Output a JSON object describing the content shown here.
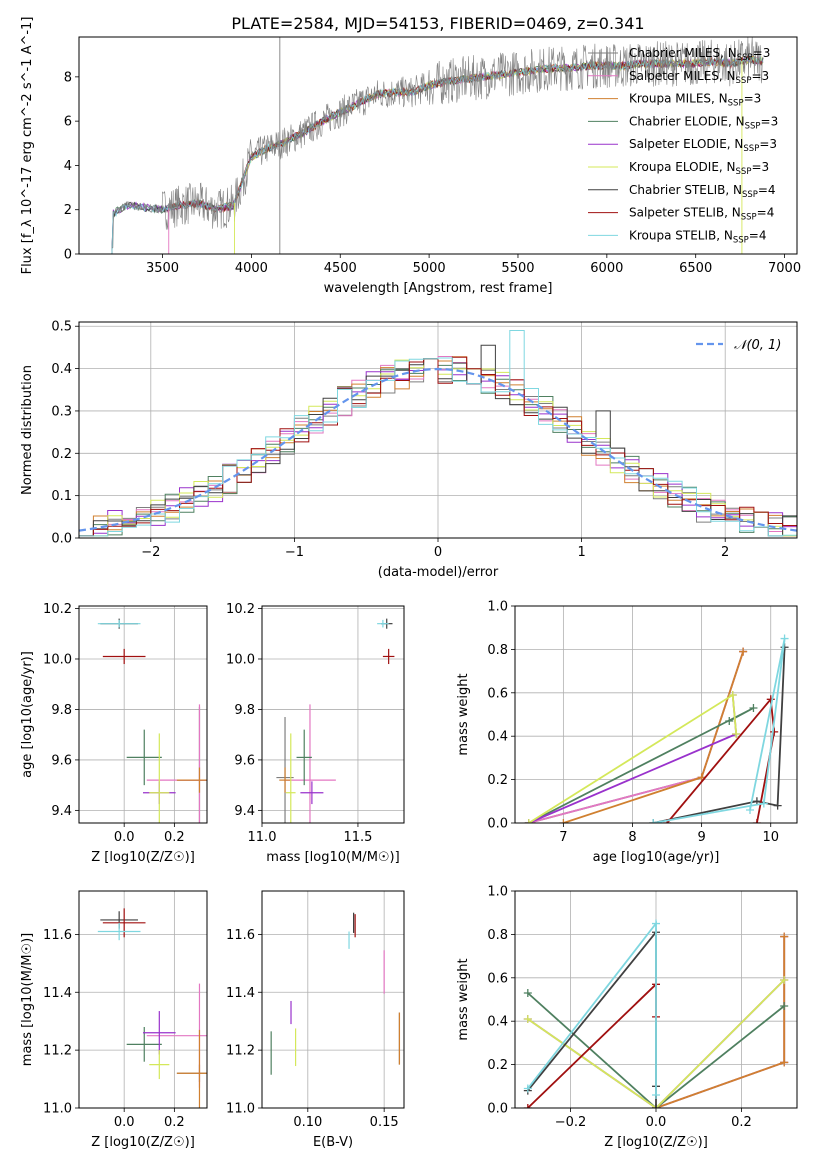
{
  "figure": {
    "title": "PLATE=2584, MJD=54153, FIBERID=0469, z=0.341"
  },
  "series_styles": [
    {
      "name": "Chabrier MILES, N_SSP=3",
      "color": "#7f7f7f"
    },
    {
      "name": "Salpeter MILES, N_SSP=3",
      "color": "#e377c2"
    },
    {
      "name": "Kroupa MILES, N_SSP=3",
      "color": "#d08030"
    },
    {
      "name": "Chabrier ELODIE, N_SSP=3",
      "color": "#4f8060"
    },
    {
      "name": "Salpeter ELODIE, N_SSP=3",
      "color": "#9932cc"
    },
    {
      "name": "Kroupa ELODIE, N_SSP=3",
      "color": "#d4e85a"
    },
    {
      "name": "Chabrier STELIB, N_SSP=4",
      "color": "#404040"
    },
    {
      "name": "Salpeter STELIB, N_SSP=4",
      "color": "#a01010"
    },
    {
      "name": "Kroupa STELIB, N_SSP=4",
      "color": "#7fd7e0"
    }
  ],
  "chart_data": [
    {
      "id": "spectrum",
      "type": "line",
      "xlabel": "wavelength [Angstrom, rest frame]",
      "ylabel": "Flux [f_λ 10^-17 erg cm^-2 s^-1 A^-1]",
      "xlim": [
        3030,
        7070
      ],
      "ylim": [
        0,
        9.8
      ],
      "xticks": [
        "3500",
        "4000",
        "4500",
        "5000",
        "5500",
        "6000",
        "6500",
        "7000"
      ],
      "yticks": [
        "0",
        "2",
        "4",
        "6",
        "8"
      ],
      "legend_position": "right",
      "legend": [
        "Chabrier MILES, N",
        "Salpeter MILES, N",
        "Kroupa MILES, N",
        "Chabrier ELODIE, N",
        "Salpeter ELODIE, N",
        "Kroupa ELODIE, N",
        "Chabrier STELIB, N",
        "Salpeter STELIB, N",
        "Kroupa STELIB, N"
      ],
      "legend_values": [
        "=3",
        "=3",
        "=3",
        "=3",
        "=3",
        "=3",
        "=4",
        "=4",
        "=4"
      ],
      "legend_sub": "SSP",
      "continuum_x": [
        3215,
        3300,
        3400,
        3500,
        3600,
        3700,
        3800,
        3900,
        4000,
        4100,
        4200,
        4300,
        4400,
        4500,
        4600,
        4700,
        4800,
        4900,
        5000,
        5100,
        5200,
        5300,
        5400,
        5500,
        5600,
        5700,
        5800,
        5900,
        6000,
        6100,
        6200,
        6300,
        6400,
        6500,
        6600,
        6700,
        6800,
        6880
      ],
      "continuum_y": [
        1.8,
        2.2,
        2.1,
        2.0,
        2.2,
        2.3,
        2.0,
        2.2,
        4.4,
        4.8,
        5.1,
        5.5,
        6.0,
        6.4,
        6.8,
        7.2,
        7.3,
        7.3,
        7.6,
        7.8,
        7.9,
        8.0,
        8.1,
        8.2,
        8.3,
        8.4,
        8.4,
        8.5,
        8.5,
        8.5,
        8.6,
        8.6,
        8.6,
        8.6,
        8.7,
        8.6,
        8.8,
        8.7
      ]
    },
    {
      "id": "residual_histogram",
      "type": "line",
      "xlabel": "(data-model)/error",
      "ylabel": "Normed distribution",
      "xlim": [
        -2.5,
        2.5
      ],
      "ylim": [
        0,
        0.51
      ],
      "xticks": [
        "-2",
        "-1",
        "0",
        "1",
        "2"
      ],
      "yticks": [
        "0.0",
        "0.1",
        "0.2",
        "0.3",
        "0.4",
        "0.5"
      ],
      "legend": [
        "N(0,1)"
      ],
      "legend_position": "upper right",
      "grid": true,
      "bin_width": 0.1
    },
    {
      "id": "age_vs_Z",
      "type": "scatter",
      "xlabel": "Z [log10(Z/Z☉)]",
      "ylabel": "age  [log10(age/yr)]",
      "xlim": [
        -0.18,
        0.33
      ],
      "ylim": [
        9.35,
        10.21
      ],
      "xticks": [
        "0.0",
        "0.2"
      ],
      "yticks": [
        "9.4",
        "9.6",
        "9.8",
        "10.0",
        "10.2"
      ],
      "grid": true,
      "points": [
        {
          "series": 0,
          "x": 0.3,
          "y": 9.52,
          "xerr": 0.18,
          "yerr": 0.58
        },
        {
          "series": 1,
          "x": 0.3,
          "y": 9.52,
          "xerr": 0.42,
          "yerr": 0.6
        },
        {
          "series": 2,
          "x": 0.3,
          "y": 9.52,
          "xerr": 0.18,
          "yerr": 0.1
        },
        {
          "series": 3,
          "x": 0.08,
          "y": 9.61,
          "xerr": 0.14,
          "yerr": 0.22
        },
        {
          "series": 4,
          "x": 0.14,
          "y": 9.47,
          "xerr": 0.13,
          "yerr": 0.09
        },
        {
          "series": 5,
          "x": 0.14,
          "y": 9.47,
          "xerr": 0.08,
          "yerr": 0.47
        },
        {
          "series": 6,
          "x": -0.02,
          "y": 10.14,
          "xerr": 0.15,
          "yerr": 0.04
        },
        {
          "series": 7,
          "x": 0.0,
          "y": 10.01,
          "xerr": 0.17,
          "yerr": 0.06
        },
        {
          "series": 8,
          "x": -0.02,
          "y": 10.14,
          "xerr": 0.17,
          "yerr": 0.03
        }
      ]
    },
    {
      "id": "age_vs_mass",
      "type": "scatter",
      "xlabel": "mass [log10(M/M☉)]",
      "ylabel": "",
      "xlim": [
        11.0,
        11.74
      ],
      "ylim": [
        9.35,
        10.21
      ],
      "xticks": [
        "11.0",
        "11.5"
      ],
      "yticks": [
        "9.4",
        "9.6",
        "9.8",
        "10.0",
        "10.2"
      ],
      "grid": true,
      "points": [
        {
          "series": 0,
          "x": 11.12,
          "y": 9.53,
          "xerr": 0.09,
          "yerr": 0.48
        },
        {
          "series": 1,
          "x": 11.25,
          "y": 9.52,
          "xerr": 0.27,
          "yerr": 0.6
        },
        {
          "series": 2,
          "x": 11.12,
          "y": 9.52,
          "xerr": 0.06,
          "yerr": 0.1
        },
        {
          "series": 3,
          "x": 11.22,
          "y": 9.61,
          "xerr": 0.08,
          "yerr": 0.22
        },
        {
          "series": 4,
          "x": 11.26,
          "y": 9.47,
          "xerr": 0.12,
          "yerr": 0.09
        },
        {
          "series": 5,
          "x": 11.15,
          "y": 9.47,
          "xerr": 0.05,
          "yerr": 0.47
        },
        {
          "series": 6,
          "x": 11.65,
          "y": 10.14,
          "xerr": 0.06,
          "yerr": 0.04
        },
        {
          "series": 7,
          "x": 11.66,
          "y": 10.01,
          "xerr": 0.06,
          "yerr": 0.06
        },
        {
          "series": 8,
          "x": 11.63,
          "y": 10.14,
          "xerr": 0.06,
          "yerr": 0.03
        }
      ]
    },
    {
      "id": "weight_vs_age",
      "type": "line",
      "xlabel": "age  [log10(age/yr)]",
      "ylabel": "mass weight",
      "xlim": [
        6.3,
        10.38
      ],
      "ylim": [
        0,
        1.0
      ],
      "xticks": [
        "7",
        "8",
        "9",
        "10"
      ],
      "yticks": [
        "0.0",
        "0.2",
        "0.4",
        "0.6",
        "0.8",
        "1.0"
      ],
      "grid": true,
      "series": [
        {
          "series": 0,
          "x": [
            6.5,
            9.0,
            9.6
          ],
          "y": [
            0.0,
            0.21,
            0.79
          ]
        },
        {
          "series": 1,
          "x": [
            6.5,
            9.0,
            9.6
          ],
          "y": [
            0.0,
            0.21,
            0.79
          ]
        },
        {
          "series": 2,
          "x": [
            7.0,
            9.0,
            9.6
          ],
          "y": [
            0.0,
            0.21,
            0.79
          ]
        },
        {
          "series": 3,
          "x": [
            6.5,
            9.75,
            9.4
          ],
          "y": [
            0.0,
            0.53,
            0.47
          ]
        },
        {
          "series": 4,
          "x": [
            6.5,
            9.5,
            9.45
          ],
          "y": [
            0.0,
            0.41,
            0.59
          ]
        },
        {
          "series": 5,
          "x": [
            6.5,
            9.45,
            9.5
          ],
          "y": [
            0.0,
            0.59,
            0.41
          ]
        },
        {
          "series": 6,
          "x": [
            8.3,
            9.8,
            10.1,
            10.2
          ],
          "y": [
            0.0,
            0.1,
            0.08,
            0.81
          ]
        },
        {
          "series": 7,
          "x": [
            8.5,
            10.0,
            10.05,
            9.8
          ],
          "y": [
            0.0,
            0.57,
            0.42,
            0.0
          ]
        },
        {
          "series": 8,
          "x": [
            8.3,
            9.9,
            10.2,
            9.7
          ],
          "y": [
            0.0,
            0.09,
            0.85,
            0.06
          ]
        }
      ]
    },
    {
      "id": "mass_vs_Z",
      "type": "scatter",
      "xlabel": "Z [log10(Z/Z☉)]",
      "ylabel": "mass [log10(M/M☉)]",
      "xlim": [
        -0.18,
        0.33
      ],
      "ylim": [
        11.0,
        11.75
      ],
      "xticks": [
        "0.0",
        "0.2"
      ],
      "yticks": [
        "11.0",
        "11.2",
        "11.4",
        "11.6"
      ],
      "grid": true,
      "points": [
        {
          "series": 0,
          "x": 0.3,
          "y": 11.12,
          "xerr": 0.18,
          "yerr": 0.06
        },
        {
          "series": 1,
          "x": 0.3,
          "y": 11.25,
          "xerr": 0.42,
          "yerr": 0.36
        },
        {
          "series": 2,
          "x": 0.3,
          "y": 11.12,
          "xerr": 0.18,
          "yerr": 0.3
        },
        {
          "series": 3,
          "x": 0.08,
          "y": 11.22,
          "xerr": 0.14,
          "yerr": 0.12
        },
        {
          "series": 4,
          "x": 0.14,
          "y": 11.26,
          "xerr": 0.13,
          "yerr": 0.15
        },
        {
          "series": 5,
          "x": 0.14,
          "y": 11.15,
          "xerr": 0.08,
          "yerr": 0.1
        },
        {
          "series": 6,
          "x": -0.02,
          "y": 11.65,
          "xerr": 0.15,
          "yerr": 0.06
        },
        {
          "series": 7,
          "x": 0.0,
          "y": 11.64,
          "xerr": 0.17,
          "yerr": 0.1
        },
        {
          "series": 8,
          "x": -0.02,
          "y": 11.61,
          "xerr": 0.17,
          "yerr": 0.06
        }
      ]
    },
    {
      "id": "mass_vs_ebv",
      "type": "scatter",
      "xlabel": "E(B-V)",
      "ylabel": "",
      "xlim": [
        0.07,
        0.163
      ],
      "ylim": [
        11.0,
        11.75
      ],
      "xticks": [
        "0.10",
        "0.15"
      ],
      "yticks": [
        "11.0",
        "11.2",
        "11.4",
        "11.6"
      ],
      "grid": true,
      "points": [
        {
          "series": 0,
          "x": 0.16,
          "y": 11.24,
          "yerr": 0.18
        },
        {
          "series": 1,
          "x": 0.15,
          "y": 11.47,
          "yerr": 0.15
        },
        {
          "series": 2,
          "x": 0.16,
          "y": 11.24,
          "yerr": 0.18
        },
        {
          "series": 3,
          "x": 0.076,
          "y": 11.19,
          "yerr": 0.15
        },
        {
          "series": 4,
          "x": 0.089,
          "y": 11.33,
          "yerr": 0.08
        },
        {
          "series": 5,
          "x": 0.092,
          "y": 11.21,
          "yerr": 0.13
        },
        {
          "series": 6,
          "x": 0.13,
          "y": 11.64,
          "yerr": 0.07
        },
        {
          "series": 7,
          "x": 0.131,
          "y": 11.63,
          "yerr": 0.08
        },
        {
          "series": 8,
          "x": 0.127,
          "y": 11.58,
          "yerr": 0.06
        }
      ]
    },
    {
      "id": "weight_vs_Z",
      "type": "line",
      "xlabel": "Z [log10(Z/Z☉)]",
      "ylabel": "mass weight",
      "xlim": [
        -0.33,
        0.33
      ],
      "ylim": [
        0,
        1.0
      ],
      "xticks": [
        "-0.2",
        "0.0",
        "0.2"
      ],
      "yticks": [
        "0.0",
        "0.2",
        "0.4",
        "0.6",
        "0.8",
        "1.0"
      ],
      "grid": true,
      "series": [
        {
          "series": 0,
          "x": [
            0.0,
            0.3,
            0.3
          ],
          "y": [
            0.0,
            0.21,
            0.79
          ]
        },
        {
          "series": 1,
          "x": [
            0.0,
            0.3,
            0.3
          ],
          "y": [
            0.0,
            0.21,
            0.79
          ]
        },
        {
          "series": 2,
          "x": [
            0.0,
            0.3,
            0.3
          ],
          "y": [
            0.0,
            0.21,
            0.79
          ]
        },
        {
          "series": 3,
          "x": [
            -0.3,
            0.0,
            0.3
          ],
          "y": [
            0.53,
            0.0,
            0.47
          ]
        },
        {
          "series": 4,
          "x": [
            -0.3,
            0.0,
            0.3
          ],
          "y": [
            0.41,
            0.0,
            0.59
          ]
        },
        {
          "series": 5,
          "x": [
            -0.3,
            0.0,
            0.3
          ],
          "y": [
            0.41,
            0.0,
            0.59
          ]
        },
        {
          "series": 6,
          "x": [
            -0.3,
            0.0,
            0.0,
            0.0
          ],
          "y": [
            0.08,
            0.81,
            0.1,
            0.0
          ]
        },
        {
          "series": 7,
          "x": [
            -0.3,
            0.0,
            0.0
          ],
          "y": [
            0.0,
            0.57,
            0.42
          ]
        },
        {
          "series": 8,
          "x": [
            -0.3,
            0.0,
            0.0
          ],
          "y": [
            0.09,
            0.85,
            0.06
          ]
        }
      ]
    }
  ]
}
